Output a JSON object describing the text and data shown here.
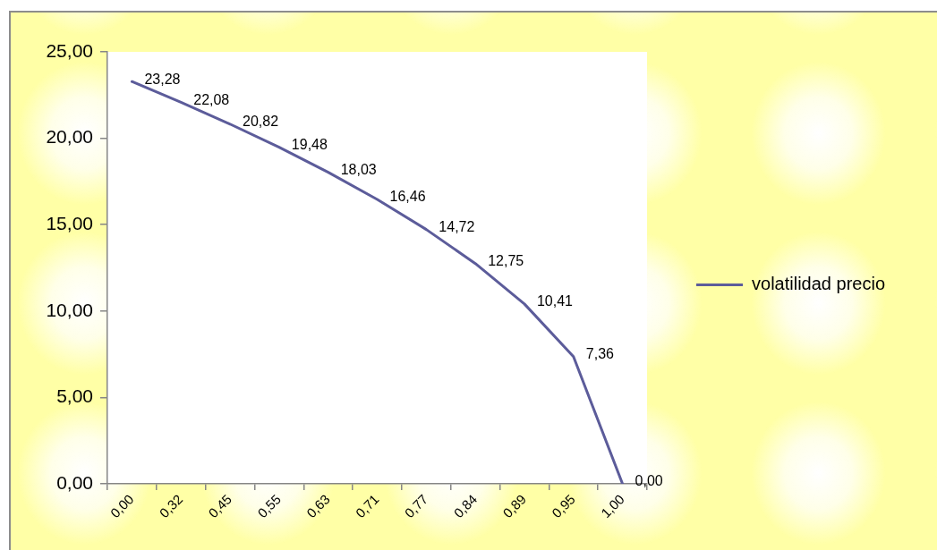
{
  "chart_data": {
    "type": "line",
    "categories": [
      "0,00",
      "0,32",
      "0,45",
      "0,55",
      "0,63",
      "0,71",
      "0,77",
      "0,84",
      "0,89",
      "0,95",
      "1,00"
    ],
    "series": [
      {
        "name": "volatilidad precio",
        "color": "#5c5c9a",
        "values": [
          23.28,
          22.08,
          20.82,
          19.48,
          18.03,
          16.46,
          14.72,
          12.75,
          10.41,
          7.36,
          0.0
        ],
        "value_labels": [
          "23,28",
          "22,08",
          "20,82",
          "19,48",
          "18,03",
          "16,46",
          "14,72",
          "12,75",
          "10,41",
          "7,36",
          "0,00"
        ]
      }
    ],
    "ylim": [
      0,
      25
    ],
    "yticks": [
      {
        "value": 0,
        "label": "0,00"
      },
      {
        "value": 5,
        "label": "5,00"
      },
      {
        "value": 10,
        "label": "10,00"
      },
      {
        "value": 15,
        "label": "15,00"
      },
      {
        "value": 20,
        "label": "20,00"
      },
      {
        "value": 25,
        "label": "25,00"
      }
    ],
    "grid": false,
    "legend": "right",
    "marker": "none"
  }
}
